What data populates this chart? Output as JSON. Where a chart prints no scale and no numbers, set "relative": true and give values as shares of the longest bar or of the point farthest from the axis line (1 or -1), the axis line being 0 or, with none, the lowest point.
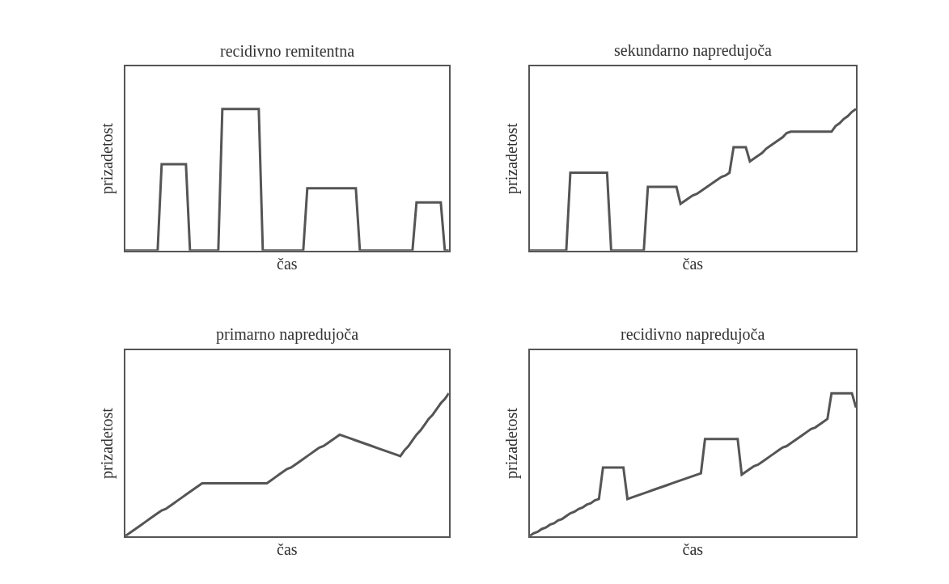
{
  "chart_data": [
    {
      "type": "line",
      "title": "recidivno remitentna",
      "xlabel": "čas",
      "ylabel": "prizadetost",
      "relative": true,
      "tick_labels": false,
      "categories": [
        null,
        null,
        null,
        null,
        null,
        null,
        null,
        null,
        null,
        null,
        null,
        null,
        null,
        null,
        null,
        null,
        null,
        null,
        null,
        null,
        null,
        null,
        null,
        null,
        null,
        null,
        null,
        null,
        null,
        null,
        null,
        null,
        null,
        null,
        null,
        null,
        null,
        null,
        null,
        null,
        null,
        null,
        null,
        null,
        null,
        null,
        null,
        null,
        null,
        null,
        null,
        null,
        null,
        null,
        null,
        null,
        null,
        null,
        null,
        null,
        null,
        null,
        null,
        null,
        null,
        null,
        null,
        null,
        null,
        null,
        null,
        null,
        null,
        null,
        null,
        null,
        null,
        null,
        null,
        null,
        null
      ],
      "series": [
        {
          "color": "#555555",
          "values": [
            0,
            0,
            0,
            0,
            0,
            0,
            0,
            0,
            0,
            0.61,
            0.61,
            0.61,
            0.61,
            0.61,
            0.61,
            0.61,
            0,
            0,
            0,
            0,
            0,
            0,
            0,
            0,
            1,
            1,
            1,
            1,
            1,
            1,
            1,
            1,
            1,
            1,
            0,
            0,
            0,
            0,
            0,
            0,
            0,
            0,
            0,
            0,
            0,
            0.44,
            0.44,
            0.44,
            0.44,
            0.44,
            0.44,
            0.44,
            0.44,
            0.44,
            0.44,
            0.44,
            0.44,
            0.44,
            0,
            0,
            0,
            0,
            0,
            0,
            0,
            0,
            0,
            0,
            0,
            0,
            0,
            0,
            0.34,
            0.34,
            0.34,
            0.34,
            0.34,
            0.34,
            0.34,
            0,
            0
          ]
        }
      ]
    },
    {
      "type": "line",
      "title": "sekundarno napredujoča",
      "xlabel": "čas",
      "ylabel": "prizadetost",
      "relative": true,
      "tick_labels": false,
      "categories": [
        null,
        null,
        null,
        null,
        null,
        null,
        null,
        null,
        null,
        null,
        null,
        null,
        null,
        null,
        null,
        null,
        null,
        null,
        null,
        null,
        null,
        null,
        null,
        null,
        null,
        null,
        null,
        null,
        null,
        null,
        null,
        null,
        null,
        null,
        null,
        null,
        null,
        null,
        null,
        null,
        null,
        null,
        null,
        null,
        null,
        null,
        null,
        null,
        null,
        null,
        null,
        null,
        null,
        null,
        null,
        null,
        null,
        null,
        null,
        null,
        null,
        null,
        null,
        null,
        null,
        null,
        null,
        null,
        null,
        null,
        null,
        null,
        null,
        null,
        null,
        null,
        null,
        null,
        null,
        null,
        null
      ],
      "series": [
        {
          "color": "#555555",
          "values": [
            0,
            0,
            0,
            0,
            0,
            0,
            0,
            0,
            0,
            0,
            0.55,
            0.55,
            0.55,
            0.55,
            0.55,
            0.55,
            0.55,
            0.55,
            0.55,
            0.55,
            0,
            0,
            0,
            0,
            0,
            0,
            0,
            0,
            0,
            0.45,
            0.45,
            0.45,
            0.45,
            0.45,
            0.45,
            0.45,
            0.45,
            0.33,
            0.35,
            0.37,
            0.39,
            0.4,
            0.42,
            0.44,
            0.46,
            0.48,
            0.5,
            0.52,
            0.53,
            0.55,
            0.73,
            0.73,
            0.73,
            0.73,
            0.63,
            0.65,
            0.67,
            0.69,
            0.72,
            0.74,
            0.76,
            0.78,
            0.8,
            0.83,
            0.84,
            0.84,
            0.84,
            0.84,
            0.84,
            0.84,
            0.84,
            0.84,
            0.84,
            0.84,
            0.84,
            0.88,
            0.9,
            0.93,
            0.95,
            0.98,
            1
          ]
        }
      ]
    },
    {
      "type": "line",
      "title": "primarno napredujoča",
      "xlabel": "čas",
      "ylabel": "prizadetost",
      "relative": true,
      "tick_labels": false,
      "categories": [
        null,
        null,
        null,
        null,
        null,
        null,
        null,
        null,
        null,
        null,
        null,
        null,
        null,
        null,
        null,
        null,
        null,
        null,
        null,
        null,
        null,
        null,
        null,
        null,
        null,
        null,
        null,
        null,
        null,
        null,
        null,
        null,
        null,
        null,
        null,
        null,
        null,
        null,
        null,
        null,
        null,
        null,
        null,
        null,
        null,
        null,
        null,
        null,
        null,
        null,
        null,
        null,
        null,
        null,
        null,
        null,
        null,
        null,
        null,
        null,
        null,
        null,
        null,
        null,
        null,
        null,
        null,
        null,
        null,
        null,
        null,
        null,
        null,
        null,
        null,
        null,
        null,
        null,
        null,
        null,
        null
      ],
      "series": [
        {
          "color": "#555555",
          "values": [
            0,
            0.02,
            0.04,
            0.06,
            0.08,
            0.1,
            0.12,
            0.14,
            0.16,
            0.18,
            0.19,
            0.21,
            0.23,
            0.25,
            0.27,
            0.29,
            0.31,
            0.33,
            0.35,
            0.37,
            0.37,
            0.37,
            0.37,
            0.37,
            0.37,
            0.37,
            0.37,
            0.37,
            0.37,
            0.37,
            0.37,
            0.37,
            0.37,
            0.37,
            0.37,
            0.37,
            0.39,
            0.41,
            0.43,
            0.45,
            0.47,
            0.48,
            0.5,
            0.52,
            0.54,
            0.56,
            0.58,
            0.6,
            0.62,
            0.63,
            0.65,
            0.67,
            0.69,
            0.71,
            0.7,
            0.69,
            0.68,
            0.67,
            0.66,
            0.65,
            0.64,
            0.63,
            0.62,
            0.61,
            0.6,
            0.59,
            0.58,
            0.57,
            0.56,
            0.6,
            0.63,
            0.67,
            0.71,
            0.74,
            0.78,
            0.82,
            0.85,
            0.89,
            0.93,
            0.96,
            1
          ]
        }
      ]
    },
    {
      "type": "line",
      "title": "recidivno napredujoča",
      "xlabel": "čas",
      "ylabel": "prizadetost",
      "relative": true,
      "tick_labels": false,
      "categories": [
        null,
        null,
        null,
        null,
        null,
        null,
        null,
        null,
        null,
        null,
        null,
        null,
        null,
        null,
        null,
        null,
        null,
        null,
        null,
        null,
        null,
        null,
        null,
        null,
        null,
        null,
        null,
        null,
        null,
        null,
        null,
        null,
        null,
        null,
        null,
        null,
        null,
        null,
        null,
        null,
        null,
        null,
        null,
        null,
        null,
        null,
        null,
        null,
        null,
        null,
        null,
        null,
        null,
        null,
        null,
        null,
        null,
        null,
        null,
        null,
        null,
        null,
        null,
        null,
        null,
        null,
        null,
        null,
        null,
        null,
        null,
        null,
        null,
        null,
        null,
        null,
        null,
        null,
        null,
        null,
        null
      ],
      "series": [
        {
          "color": "#555555",
          "values": [
            0,
            0.02,
            0.03,
            0.05,
            0.06,
            0.08,
            0.09,
            0.11,
            0.12,
            0.14,
            0.16,
            0.17,
            0.19,
            0.2,
            0.22,
            0.23,
            0.25,
            0.26,
            0.48,
            0.48,
            0.48,
            0.48,
            0.48,
            0.48,
            0.26,
            0.27,
            0.28,
            0.29,
            0.3,
            0.31,
            0.32,
            0.33,
            0.34,
            0.35,
            0.36,
            0.37,
            0.38,
            0.39,
            0.4,
            0.41,
            0.42,
            0.43,
            0.44,
            0.68,
            0.68,
            0.68,
            0.68,
            0.68,
            0.68,
            0.68,
            0.68,
            0.68,
            0.43,
            0.45,
            0.47,
            0.49,
            0.5,
            0.52,
            0.54,
            0.56,
            0.58,
            0.6,
            0.62,
            0.63,
            0.65,
            0.67,
            0.69,
            0.71,
            0.73,
            0.75,
            0.76,
            0.78,
            0.8,
            0.82,
            1,
            1,
            1,
            1,
            1,
            1,
            0.9
          ]
        }
      ]
    }
  ]
}
